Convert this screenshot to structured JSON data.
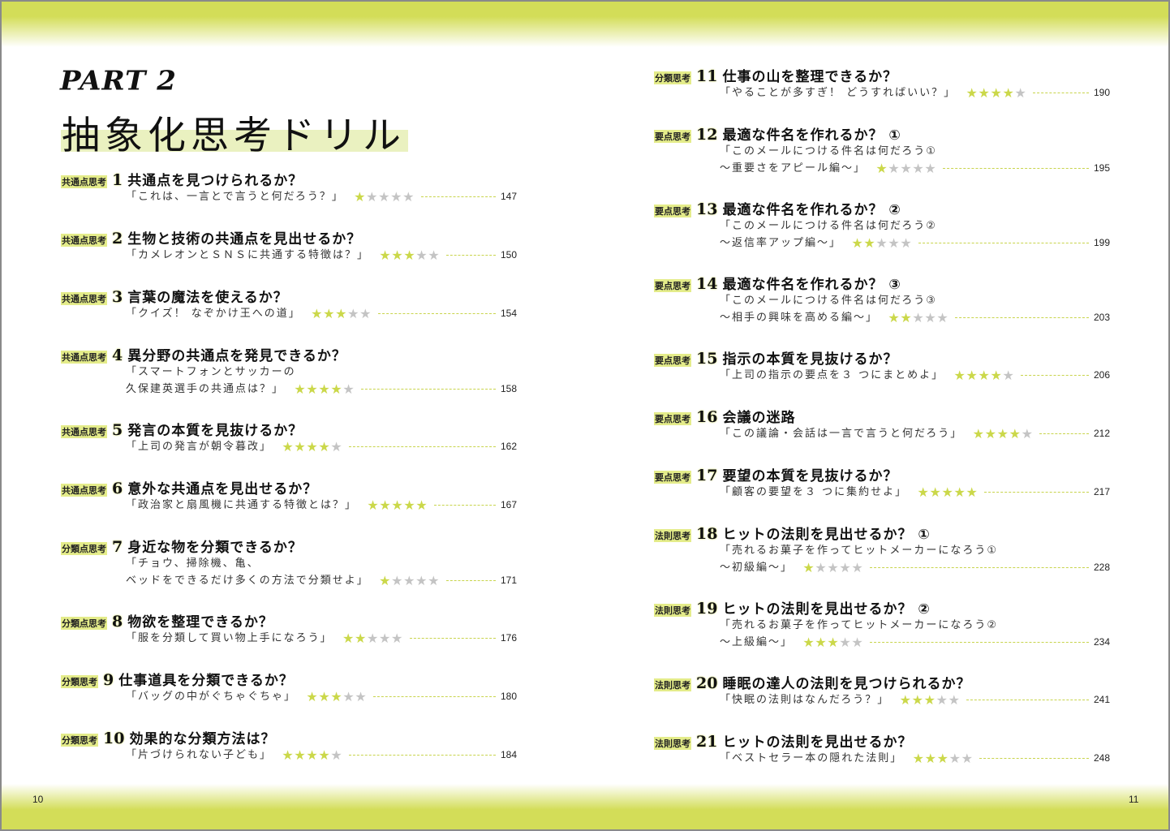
{
  "colors": {
    "accent": "#d3dd58",
    "star_on": "#cbd84a",
    "star_off": "#c4c4c4"
  },
  "part": "PART 2",
  "title": "抽象化思考ドリル",
  "folio_left": "10",
  "folio_right": "11",
  "left_entries": [
    {
      "label": "共通点思考",
      "num": "1",
      "title": "共通点を見つけられるか？",
      "sub": [
        "「これは、一言とで言うと何だろう？」"
      ],
      "stars": 1,
      "page": "147"
    },
    {
      "label": "共通点思考",
      "num": "2",
      "title": "生物と技術の共通点を見出せるか？",
      "sub": [
        "「カメレオンとＳＮＳに共通する特徴は？」"
      ],
      "stars": 3,
      "page": "150"
    },
    {
      "label": "共通点思考",
      "num": "3",
      "title": "言葉の魔法を使えるか？",
      "sub": [
        "「クイズ！ なぞかけ王への道」"
      ],
      "stars": 3,
      "page": "154"
    },
    {
      "label": "共通点思考",
      "num": "4",
      "title": "異分野の共通点を発見できるか？",
      "sub": [
        "「スマートフォンとサッカーの",
        "久保建英選手の共通点は？」"
      ],
      "stars": 4,
      "page": "158"
    },
    {
      "label": "共通点思考",
      "num": "5",
      "title": "発言の本質を見抜けるか？",
      "sub": [
        "「上司の発言が朝令暮改」"
      ],
      "stars": 4,
      "page": "162"
    },
    {
      "label": "共通点思考",
      "num": "6",
      "title": "意外な共通点を見出せるか？",
      "sub": [
        "「政治家と扇風機に共通する特徴とは？」"
      ],
      "stars": 5,
      "page": "167"
    },
    {
      "label": "分類点思考",
      "num": "7",
      "title": "身近な物を分類できるか？",
      "sub": [
        "「チョウ、掃除機、亀、",
        "ベッドをできるだけ多くの方法で分類せよ」"
      ],
      "stars": 1,
      "page": "171"
    },
    {
      "label": "分類点思考",
      "num": "8",
      "title": "物欲を整理できるか？",
      "sub": [
        "「服を分類して買い物上手になろう」"
      ],
      "stars": 2,
      "page": "176"
    },
    {
      "label": "分類思考",
      "num": "9",
      "title": "仕事道具を分類できるか？",
      "sub": [
        "「バッグの中がぐちゃぐちゃ」"
      ],
      "stars": 3,
      "page": "180"
    },
    {
      "label": "分類思考",
      "num": "10",
      "title": "効果的な分類方法は？",
      "sub": [
        "「片づけられない子ども」"
      ],
      "stars": 4,
      "page": "184"
    }
  ],
  "right_entries": [
    {
      "label": "分類思考",
      "num": "11",
      "title": "仕事の山を整理できるか？",
      "sub": [
        "「やることが多すぎ！ どうすればいい？」"
      ],
      "stars": 4,
      "page": "190"
    },
    {
      "label": "要点思考",
      "num": "12",
      "title": "最適な件名を作れるか？ ①",
      "sub": [
        "「このメールにつける件名は何だろう①",
        "～重要さをアピール編～」"
      ],
      "stars": 1,
      "page": "195"
    },
    {
      "label": "要点思考",
      "num": "13",
      "title": "最適な件名を作れるか？ ②",
      "sub": [
        "「このメールにつける件名は何だろう②",
        "～返信率アップ編～」"
      ],
      "stars": 2,
      "page": "199"
    },
    {
      "label": "要点思考",
      "num": "14",
      "title": "最適な件名を作れるか？ ③",
      "sub": [
        "「このメールにつける件名は何だろう③",
        "～相手の興味を高める編～」"
      ],
      "stars": 2,
      "page": "203"
    },
    {
      "label": "要点思考",
      "num": "15",
      "title": "指示の本質を見抜けるか？",
      "sub": [
        "「上司の指示の要点を３ つにまとめよ」"
      ],
      "stars": 4,
      "page": "206"
    },
    {
      "label": "要点思考",
      "num": "16",
      "title": "会議の迷路",
      "sub": [
        "「この議論・会話は一言で言うと何だろう」"
      ],
      "stars": 4,
      "page": "212"
    },
    {
      "label": "要点思考",
      "num": "17",
      "title": "要望の本質を見抜けるか？",
      "sub": [
        "「顧客の要望を３ つに集約せよ」"
      ],
      "stars": 5,
      "page": "217"
    },
    {
      "label": "法則思考",
      "num": "18",
      "title": "ヒットの法則を見出せるか？ ①",
      "sub": [
        "「売れるお菓子を作ってヒットメーカーになろう①",
        "～初級編～」"
      ],
      "stars": 1,
      "page": "228"
    },
    {
      "label": "法則思考",
      "num": "19",
      "title": "ヒットの法則を見出せるか？ ②",
      "sub": [
        "「売れるお菓子を作ってヒットメーカーになろう②",
        "～上級編～」"
      ],
      "stars": 3,
      "page": "234"
    },
    {
      "label": "法則思考",
      "num": "20",
      "title": "睡眠の達人の法則を見つけられるか？",
      "sub": [
        "「快眠の法則はなんだろう？」"
      ],
      "stars": 3,
      "page": "241"
    },
    {
      "label": "法則思考",
      "num": "21",
      "title": "ヒットの法則を見出せるか？",
      "sub": [
        "「ベストセラー本の隠れた法則」"
      ],
      "stars": 3,
      "page": "248"
    }
  ]
}
